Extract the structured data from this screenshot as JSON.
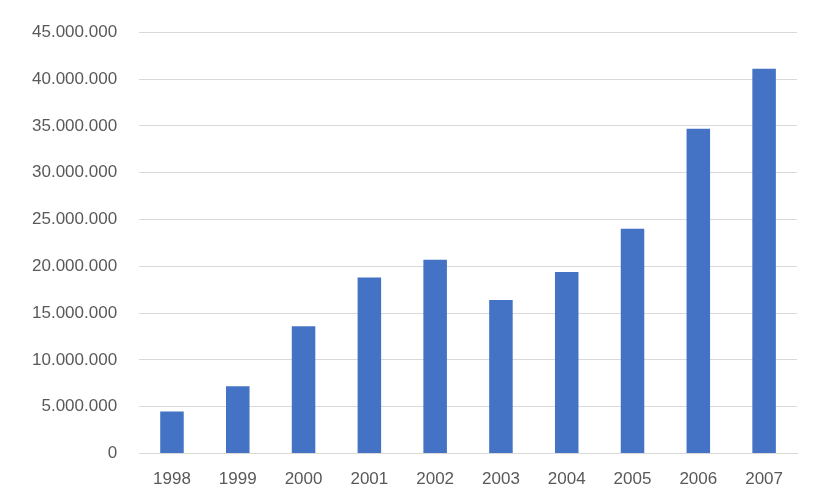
{
  "chart_data": {
    "type": "bar",
    "categories": [
      "1998",
      "1999",
      "2000",
      "2001",
      "2002",
      "2003",
      "2004",
      "2005",
      "2006",
      "2007"
    ],
    "values": [
      4500000,
      7200000,
      13600000,
      18800000,
      20700000,
      16400000,
      19400000,
      24000000,
      34700000,
      41100000
    ],
    "color": "#4472c4",
    "ylim": [
      0,
      45000000
    ],
    "yticks": [
      {
        "value": 0,
        "label": "0"
      },
      {
        "value": 5000000,
        "label": "5.000.000"
      },
      {
        "value": 10000000,
        "label": "10.000.000"
      },
      {
        "value": 15000000,
        "label": "15.000.000"
      },
      {
        "value": 20000000,
        "label": "20.000.000"
      },
      {
        "value": 25000000,
        "label": "25.000.000"
      },
      {
        "value": 30000000,
        "label": "30.000.000"
      },
      {
        "value": 35000000,
        "label": "35.000.000"
      },
      {
        "value": 40000000,
        "label": "40.000.000"
      },
      {
        "value": 45000000,
        "label": "45.000.000"
      }
    ],
    "grid": true
  }
}
